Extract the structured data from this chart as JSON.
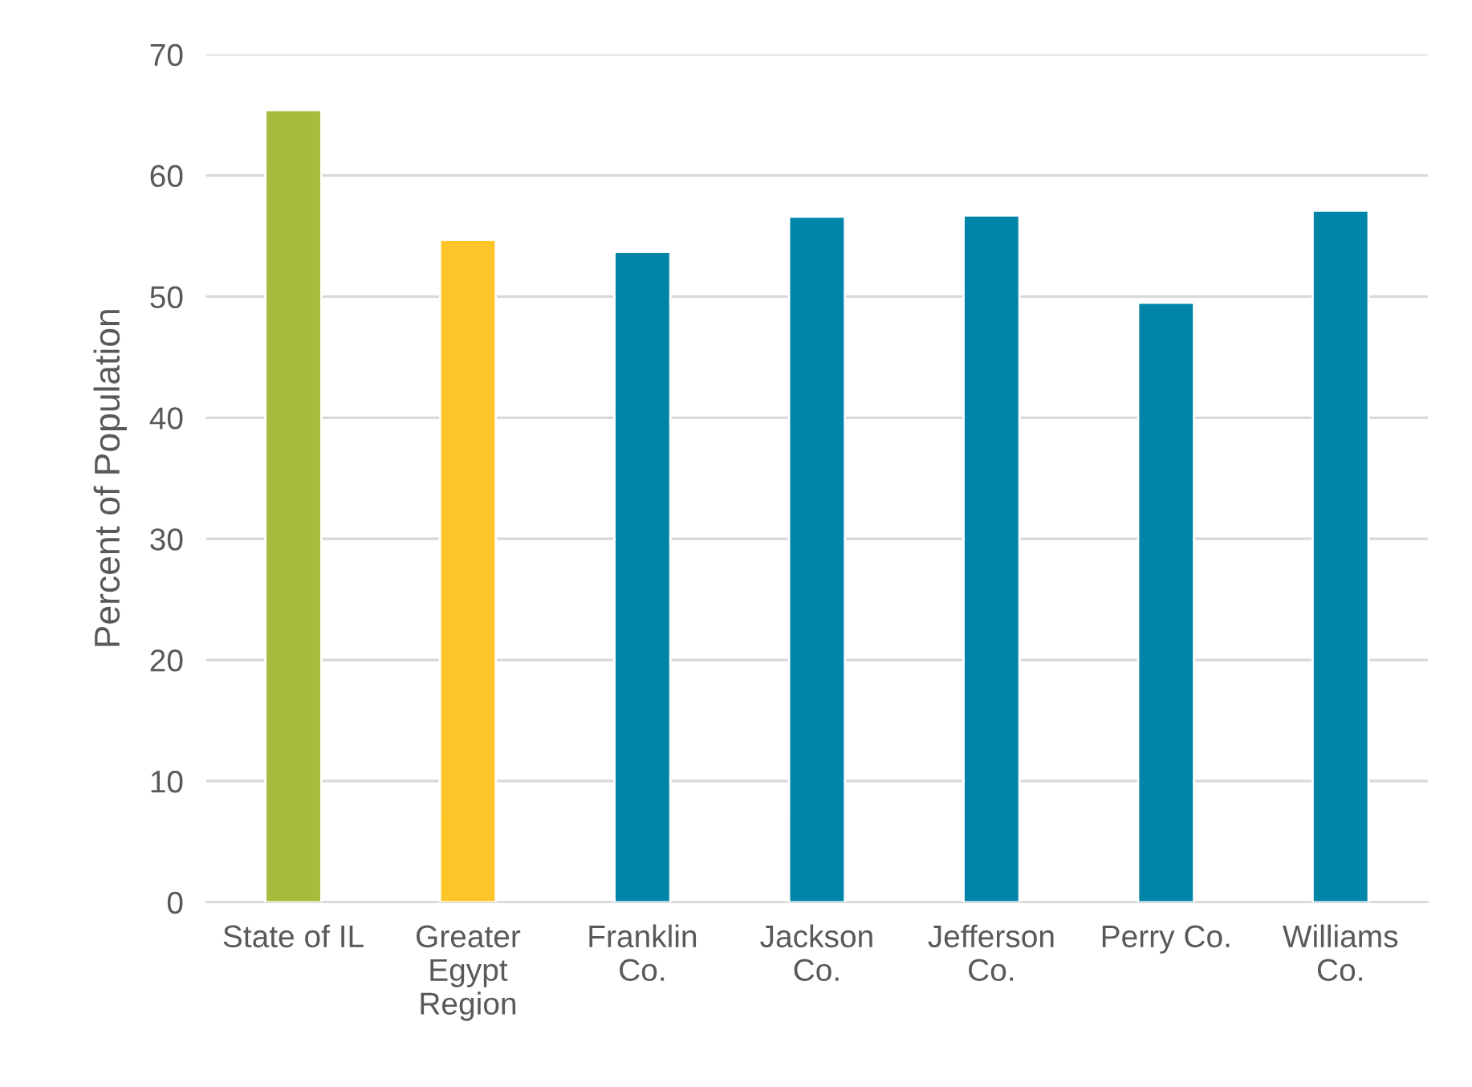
{
  "chart_data": {
    "type": "bar",
    "ylabel": "Percent of Population",
    "categories": [
      "State of IL",
      "Greater\nEgypt\nRegion",
      "Franklin\nCo.",
      "Jackson\nCo.",
      "Jefferson\nCo.",
      "Perry Co.",
      "Williams\nCo."
    ],
    "values": [
      65.4,
      54.7,
      53.7,
      56.6,
      56.7,
      49.5,
      57.1
    ],
    "colors": [
      "#a5bc3c",
      "#fdc528",
      "#0085a8",
      "#0085a8",
      "#0085a8",
      "#0085a8",
      "#0085a8"
    ],
    "ylim": [
      0,
      70
    ],
    "yticks": [
      0,
      10,
      20,
      30,
      40,
      50,
      60,
      70
    ],
    "grid": "y"
  }
}
